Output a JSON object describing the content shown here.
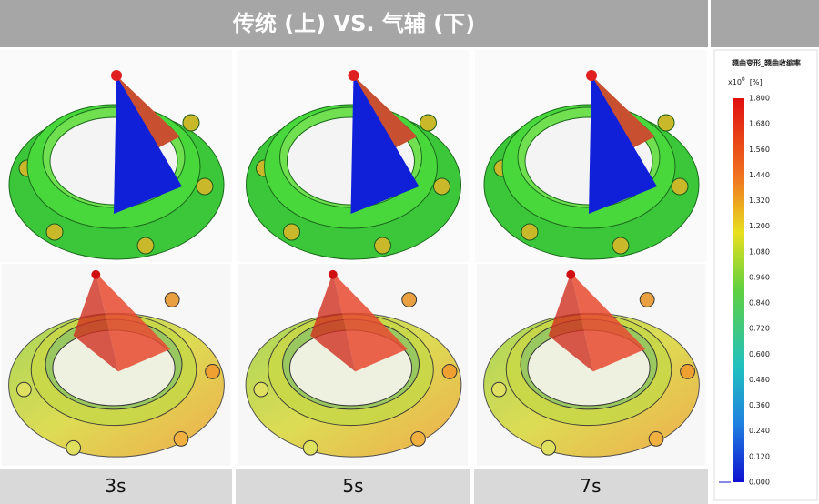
{
  "header": {
    "title": "传统 (上) VS. 气辅 (下)"
  },
  "columns": [
    "3s",
    "5s",
    "7s"
  ],
  "legend": {
    "title": "翘曲变形_翘曲收缩率",
    "unit": "x10",
    "exponent": "0",
    "unit_suffix": "[%]",
    "ticks": [
      "1.800",
      "1.680",
      "1.560",
      "1.440",
      "1.320",
      "1.200",
      "1.080",
      "0.960",
      "0.840",
      "0.720",
      "0.600",
      "0.480",
      "0.360",
      "0.240",
      "0.120",
      "0.000"
    ]
  }
}
